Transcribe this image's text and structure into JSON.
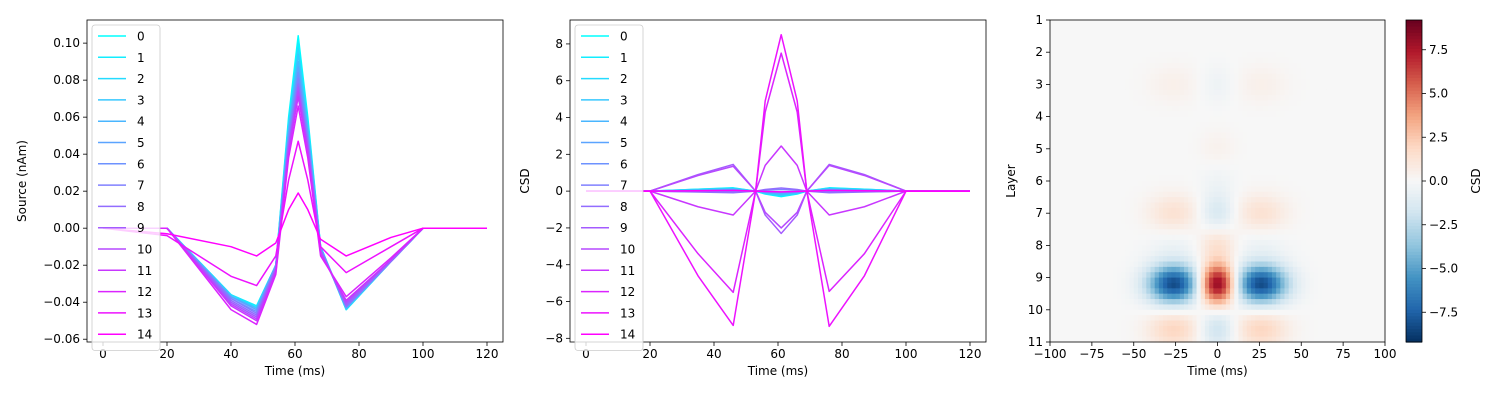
{
  "chart_data": [
    {
      "type": "line",
      "xlabel": "Time (ms)",
      "ylabel": "Source (nAm)",
      "xlim": [
        -5,
        125
      ],
      "ylim": [
        -0.0615,
        0.1125
      ],
      "xticks": [
        0,
        20,
        40,
        60,
        80,
        100,
        120
      ],
      "xtick_labels": [
        "0",
        "20",
        "40",
        "60",
        "80",
        "100",
        "120"
      ],
      "yticks": [
        -0.06,
        -0.04,
        -0.02,
        0.0,
        0.02,
        0.04,
        0.06,
        0.08,
        0.1
      ],
      "ytick_labels": [
        "−0.06",
        "−0.04",
        "−0.02",
        "0.00",
        "0.02",
        "0.04",
        "0.06",
        "0.08",
        "0.10"
      ],
      "grid": false,
      "legend": "upper left",
      "x": [
        0,
        20,
        40,
        48,
        54,
        58,
        61,
        64,
        68,
        76,
        90,
        100,
        120
      ],
      "series": [
        {
          "name": "0",
          "values": [
            0,
            0,
            -0.036,
            -0.042,
            -0.02,
            0.06,
            0.104,
            0.06,
            -0.01,
            -0.044,
            -0.018,
            0,
            0
          ]
        },
        {
          "name": "1",
          "values": [
            0,
            0,
            -0.036,
            -0.042,
            -0.02,
            0.058,
            0.1,
            0.058,
            -0.01,
            -0.044,
            -0.018,
            0,
            0
          ]
        },
        {
          "name": "2",
          "values": [
            0,
            0,
            -0.036,
            -0.043,
            -0.02,
            0.056,
            0.097,
            0.056,
            -0.01,
            -0.044,
            -0.018,
            0,
            0
          ]
        },
        {
          "name": "3",
          "values": [
            0,
            0,
            -0.037,
            -0.043,
            -0.02,
            0.054,
            0.094,
            0.054,
            -0.01,
            -0.043,
            -0.018,
            0,
            0
          ]
        },
        {
          "name": "4",
          "values": [
            0,
            0,
            -0.037,
            -0.044,
            -0.02,
            0.052,
            0.09,
            0.052,
            -0.011,
            -0.043,
            -0.018,
            0,
            0
          ]
        },
        {
          "name": "5",
          "values": [
            0,
            0,
            -0.037,
            -0.044,
            -0.02,
            0.051,
            0.087,
            0.051,
            -0.011,
            -0.043,
            -0.018,
            0,
            0
          ]
        },
        {
          "name": "6",
          "values": [
            0,
            0,
            -0.038,
            -0.045,
            -0.021,
            0.049,
            0.084,
            0.049,
            -0.011,
            -0.043,
            -0.018,
            0,
            0
          ]
        },
        {
          "name": "7",
          "values": [
            0,
            0,
            -0.038,
            -0.046,
            -0.021,
            0.047,
            0.081,
            0.047,
            -0.012,
            -0.042,
            -0.018,
            0,
            0
          ]
        },
        {
          "name": "8",
          "values": [
            0,
            0,
            -0.039,
            -0.047,
            -0.022,
            0.045,
            0.078,
            0.045,
            -0.012,
            -0.042,
            -0.018,
            0,
            0
          ]
        },
        {
          "name": "9",
          "values": [
            0,
            0,
            -0.04,
            -0.048,
            -0.022,
            0.044,
            0.076,
            0.044,
            -0.012,
            -0.041,
            -0.017,
            0,
            0
          ]
        },
        {
          "name": "10",
          "values": [
            0,
            0,
            -0.041,
            -0.049,
            -0.023,
            0.043,
            0.074,
            0.043,
            -0.013,
            -0.04,
            -0.017,
            0,
            0
          ]
        },
        {
          "name": "11",
          "values": [
            0,
            0,
            -0.042,
            -0.05,
            -0.024,
            0.041,
            0.071,
            0.041,
            -0.014,
            -0.039,
            -0.017,
            0,
            0
          ]
        },
        {
          "name": "12",
          "values": [
            0,
            0,
            -0.044,
            -0.052,
            -0.025,
            0.038,
            0.066,
            0.038,
            -0.015,
            -0.037,
            -0.016,
            0,
            0
          ]
        },
        {
          "name": "13",
          "values": [
            0,
            -0.004,
            -0.026,
            -0.031,
            -0.015,
            0.026,
            0.047,
            0.026,
            -0.01,
            -0.024,
            -0.01,
            0,
            0
          ]
        },
        {
          "name": "14",
          "values": [
            0,
            -0.003,
            -0.01,
            -0.015,
            -0.008,
            0.01,
            0.019,
            0.01,
            -0.006,
            -0.015,
            -0.005,
            0,
            0
          ]
        }
      ]
    },
    {
      "type": "line",
      "xlabel": "Time (ms)",
      "ylabel": "CSD",
      "xlim": [
        -5,
        125
      ],
      "ylim": [
        -8.2,
        9.3
      ],
      "xticks": [
        0,
        20,
        40,
        60,
        80,
        100,
        120
      ],
      "xtick_labels": [
        "0",
        "20",
        "40",
        "60",
        "80",
        "100",
        "120"
      ],
      "yticks": [
        -8,
        -6,
        -4,
        -2,
        0,
        2,
        4,
        6,
        8
      ],
      "ytick_labels": [
        "−8",
        "−6",
        "−4",
        "−2",
        "0",
        "2",
        "4",
        "6",
        "8"
      ],
      "grid": false,
      "legend": "upper left",
      "x": [
        0,
        20,
        35,
        46,
        53,
        56,
        61,
        66,
        69,
        76,
        87,
        100,
        120
      ],
      "series": [
        {
          "name": "0",
          "values": [
            0,
            0,
            0.1,
            0.18,
            0,
            -0.16,
            -0.3,
            -0.16,
            0,
            0.18,
            0.1,
            0,
            0
          ]
        },
        {
          "name": "1",
          "values": [
            0,
            0,
            0.1,
            0.16,
            0,
            -0.14,
            -0.27,
            -0.14,
            0,
            0.16,
            0.1,
            0,
            0
          ]
        },
        {
          "name": "2",
          "values": [
            0,
            0,
            0.08,
            0.14,
            0,
            -0.12,
            -0.24,
            -0.12,
            0,
            0.14,
            0.08,
            0,
            0
          ]
        },
        {
          "name": "3",
          "values": [
            0,
            0,
            0.07,
            0.12,
            0,
            -0.1,
            -0.2,
            -0.1,
            0,
            0.12,
            0.07,
            0,
            0
          ]
        },
        {
          "name": "4",
          "values": [
            0,
            0,
            0.05,
            0.09,
            0,
            -0.08,
            -0.15,
            -0.08,
            0,
            0.09,
            0.05,
            0,
            0
          ]
        },
        {
          "name": "5",
          "values": [
            0,
            0,
            0.03,
            0.06,
            0,
            -0.05,
            -0.1,
            -0.05,
            0,
            0.06,
            0.03,
            0,
            0
          ]
        },
        {
          "name": "6",
          "values": [
            0,
            0,
            0.02,
            0.03,
            0,
            -0.03,
            -0.05,
            -0.03,
            0,
            0.03,
            0.02,
            0,
            0
          ]
        },
        {
          "name": "7",
          "values": [
            0,
            0,
            -0.03,
            -0.05,
            0,
            0.05,
            0.09,
            0.05,
            0,
            -0.05,
            -0.03,
            0,
            0
          ]
        },
        {
          "name": "8",
          "values": [
            0,
            0,
            -0.05,
            -0.09,
            0,
            0.09,
            0.17,
            0.09,
            0,
            -0.09,
            -0.05,
            0,
            0
          ]
        },
        {
          "name": "9",
          "values": [
            0,
            0,
            0.9,
            1.45,
            0,
            -1.3,
            -2.3,
            -1.3,
            0,
            1.45,
            0.9,
            0,
            0
          ]
        },
        {
          "name": "10",
          "values": [
            0,
            0,
            0.85,
            1.35,
            0,
            -1.15,
            -2.0,
            -1.15,
            0,
            1.4,
            0.85,
            0,
            0
          ]
        },
        {
          "name": "11",
          "values": [
            0,
            0,
            -0.85,
            -1.3,
            0,
            1.4,
            2.45,
            1.4,
            0,
            -1.3,
            -0.85,
            0,
            0
          ]
        },
        {
          "name": "12",
          "values": [
            0,
            0,
            -3.4,
            -5.5,
            0,
            4.3,
            7.5,
            4.3,
            0,
            -5.45,
            -3.4,
            0,
            0
          ]
        },
        {
          "name": "13",
          "values": [
            0,
            0,
            -4.6,
            -7.3,
            0,
            4.9,
            8.5,
            4.9,
            0,
            -7.35,
            -4.6,
            0,
            0
          ]
        },
        {
          "name": "14",
          "values": [
            0,
            0,
            0.02,
            0.04,
            0,
            -0.02,
            -0.04,
            -0.02,
            0,
            0.04,
            0.02,
            0,
            0
          ]
        }
      ]
    },
    {
      "type": "heatmap",
      "xlabel": "Time (ms)",
      "ylabel": "Layer",
      "xlim": [
        -100,
        100
      ],
      "ylim": [
        11,
        1
      ],
      "xticks": [
        -100,
        -75,
        -50,
        -25,
        0,
        25,
        50,
        75,
        100
      ],
      "xtick_labels": [
        "−100",
        "−75",
        "−50",
        "−25",
        "0",
        "25",
        "50",
        "75",
        "100"
      ],
      "yticks": [
        1,
        2,
        3,
        4,
        5,
        6,
        7,
        8,
        9,
        10,
        11
      ],
      "ytick_labels": [
        "1",
        "2",
        "3",
        "4",
        "5",
        "6",
        "7",
        "8",
        "9",
        "10",
        "11"
      ],
      "colormap": "RdBu_r",
      "colorbar": {
        "label": "CSD",
        "range": [
          -9.2,
          9.2
        ],
        "ticks": [
          -7.5,
          -5.0,
          -2.5,
          0.0,
          2.5,
          5.0,
          7.5
        ],
        "tick_labels": [
          "−7.5",
          "−5.0",
          "−2.5",
          "0.0",
          "2.5",
          "5.0",
          "7.5"
        ]
      },
      "components": [
        {
          "layer": 3.0,
          "center_amplitude": -0.5,
          "side_amplitude": 0.5
        },
        {
          "layer": 5.0,
          "center_amplitude": 0.4,
          "side_amplitude": 0.0
        },
        {
          "layer": 6.0,
          "center_amplitude": -0.4,
          "side_amplitude": 0.0
        },
        {
          "layer": 7.0,
          "center_amplitude": -1.6,
          "side_amplitude": 1.4
        },
        {
          "layer": 8.0,
          "center_amplitude": 1.5,
          "side_amplitude": -0.5
        },
        {
          "layer": 9.2,
          "center_amplitude": 9.0,
          "side_amplitude": -8.3
        },
        {
          "layer": 10.6,
          "center_amplitude": -2.0,
          "side_amplitude": 2.0
        }
      ]
    }
  ]
}
